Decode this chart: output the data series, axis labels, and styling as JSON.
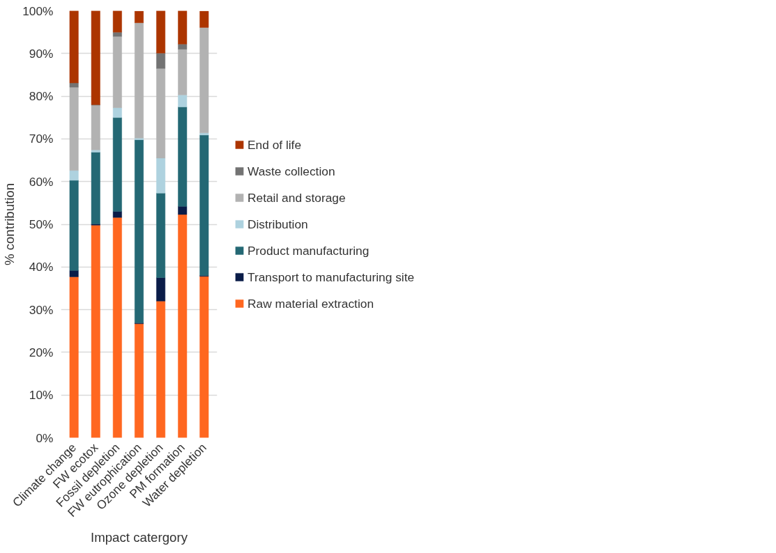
{
  "chart_data": {
    "type": "bar",
    "stacked": true,
    "xlabel": "Impact catergory",
    "ylabel": "% contribution",
    "categories": [
      "Climate change",
      "FW ecotox",
      "Fossil depletion",
      "FW eutrophication",
      "Ozone depletion",
      "PM formation",
      "Water depletion"
    ],
    "series": [
      {
        "name": "Raw material extraction",
        "color": "#ff6720",
        "values": [
          37.7,
          49.8,
          51.6,
          26.7,
          32.0,
          52.3,
          37.8
        ]
      },
      {
        "name": "Transport to manufacturing site",
        "color": "#0a1c48",
        "values": [
          1.5,
          0.3,
          1.4,
          0.2,
          5.5,
          1.9,
          0.2
        ]
      },
      {
        "name": "Product manufacturing",
        "color": "#246874",
        "values": [
          21.1,
          16.8,
          22.0,
          42.9,
          19.8,
          23.3,
          32.9
        ]
      },
      {
        "name": "Distribution",
        "color": "#aed2df",
        "values": [
          2.3,
          0.5,
          2.3,
          0.4,
          8.2,
          2.8,
          0.5
        ]
      },
      {
        "name": "Retail and storage",
        "color": "#b2b2b2",
        "values": [
          19.5,
          10.5,
          16.7,
          27.0,
          21.0,
          10.7,
          24.7
        ]
      },
      {
        "name": "Waste collection",
        "color": "#737373",
        "values": [
          1.0,
          0.1,
          1.0,
          null,
          3.6,
          1.2,
          null
        ]
      },
      {
        "name": "End of life",
        "color": "#ac3500",
        "values": [
          16.9,
          22.0,
          5.0,
          2.7,
          9.9,
          7.8,
          3.8
        ]
      }
    ],
    "ylim": [
      0,
      100
    ],
    "yticks": [
      {
        "value": 0,
        "label": "0%"
      },
      {
        "value": 10,
        "label": "10%"
      },
      {
        "value": 20,
        "label": "20%"
      },
      {
        "value": 30,
        "label": "30%"
      },
      {
        "value": 40,
        "label": "40%"
      },
      {
        "value": 50,
        "label": "50%"
      },
      {
        "value": 60,
        "label": "60%"
      },
      {
        "value": 70,
        "label": "70%"
      },
      {
        "value": 80,
        "label": "80%"
      },
      {
        "value": 90,
        "label": "90%"
      },
      {
        "value": 100,
        "label": "100%"
      }
    ],
    "grid": "y",
    "legend": "right"
  }
}
